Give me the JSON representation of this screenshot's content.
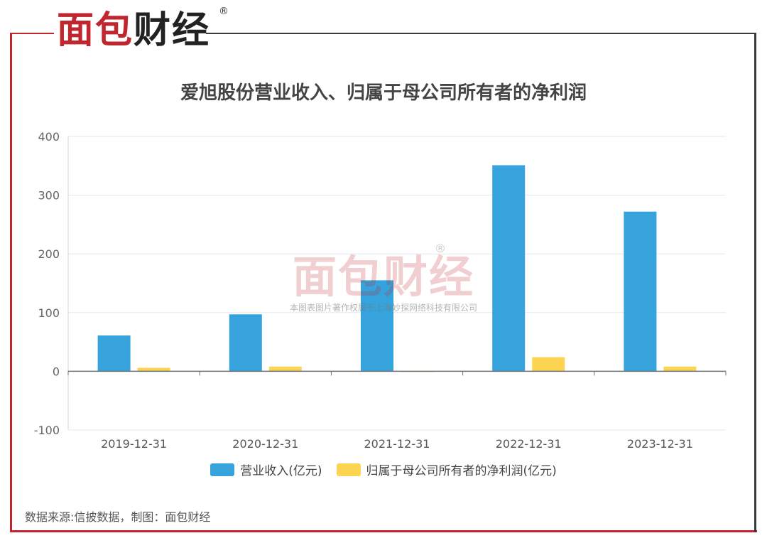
{
  "brand": {
    "logo_text": "面包财经",
    "registered_mark": "®",
    "watermark_text": "面包财经",
    "watermark_notice": "本图表图片著作权属于上海妙探网络科技有限公司"
  },
  "footer": {
    "source": "数据来源:信披数据，制图：面包财经"
  },
  "colors": {
    "brand_red": "#c0262d",
    "revenue": "#36a3dc",
    "profit": "#fcd451"
  },
  "chart_data": {
    "type": "bar",
    "title": "爱旭股份营业收入、归属于母公司所有者的净利润",
    "categories": [
      "2019-12-31",
      "2020-12-31",
      "2021-12-31",
      "2022-12-31",
      "2023-12-31"
    ],
    "series": [
      {
        "name": "营业收入(亿元)",
        "color": "#36a3dc",
        "values": [
          61,
          97,
          155,
          351,
          272
        ]
      },
      {
        "name": "归属于母公司所有者的净利润(亿元)",
        "color": "#fcd451",
        "values": [
          6,
          8,
          -1,
          24,
          8
        ]
      }
    ],
    "yticks": [
      400,
      300,
      200,
      100,
      0,
      -100
    ],
    "ylim": [
      -100,
      400
    ],
    "xlabel": "",
    "ylabel": "",
    "grid": true,
    "legend": "bottom"
  }
}
